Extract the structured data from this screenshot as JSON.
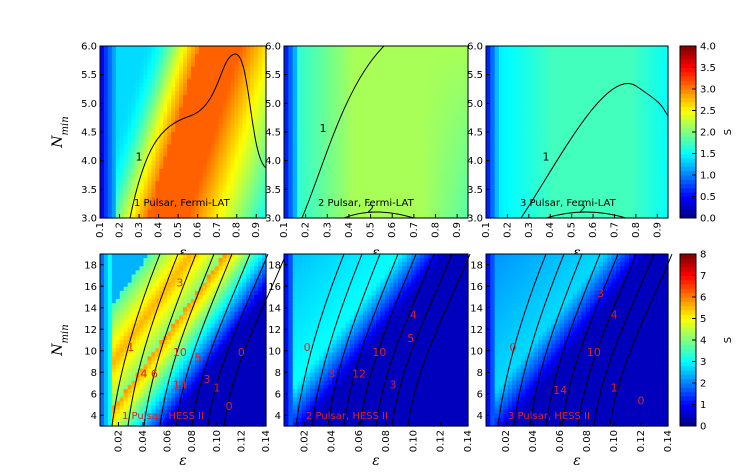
{
  "chart_data": [
    {
      "type": "heatmap",
      "panel_label": "1 Pulsar, Fermi-LAT",
      "xlabel": "ε",
      "ylabel": "N_min",
      "xlim": [
        0.1,
        0.95
      ],
      "ylim": [
        3.0,
        6.0
      ],
      "xticks": [
        "0.1",
        "0.2",
        "0.3",
        "0.4",
        "0.5",
        "0.6",
        "0.7",
        "0.8",
        "0.9"
      ],
      "yticks": [
        "3.0",
        "3.5",
        "4.0",
        "4.5",
        "5.0",
        "5.5",
        "6.0"
      ],
      "colorbar": "top",
      "contour_labels": [
        {
          "text": "1",
          "x": 0.3,
          "y": 4.0,
          "color": "#000000"
        }
      ]
    },
    {
      "type": "heatmap",
      "panel_label": "2 Pulsar, Fermi-LAT",
      "xlabel": "ε",
      "ylabel": "",
      "xlim": [
        0.1,
        0.95
      ],
      "ylim": [
        3.0,
        6.0
      ],
      "xticks": [
        "0.1",
        "0.2",
        "0.3",
        "0.4",
        "0.5",
        "0.6",
        "0.7",
        "0.8",
        "0.9"
      ],
      "yticks": [
        "3.0",
        "3.5",
        "4.0",
        "4.5",
        "5.0",
        "5.5",
        "6.0"
      ],
      "colorbar": "top",
      "contour_labels": [
        {
          "text": "1",
          "x": 0.28,
          "y": 4.5,
          "color": "#000000"
        },
        {
          "text": "2",
          "x": 0.5,
          "y": 3.1,
          "color": "#000000"
        }
      ]
    },
    {
      "type": "heatmap",
      "panel_label": "3 Pulsar, Fermi-LAT",
      "xlabel": "ε",
      "ylabel": "",
      "xlim": [
        0.1,
        0.95
      ],
      "ylim": [
        3.0,
        6.0
      ],
      "xticks": [
        "0.1",
        "0.2",
        "0.3",
        "0.4",
        "0.5",
        "0.6",
        "0.7",
        "0.8",
        "0.9"
      ],
      "yticks": [
        "3.0",
        "3.5",
        "4.0",
        "4.5",
        "5.0",
        "5.5",
        "6.0"
      ],
      "colorbar": "top",
      "contour_labels": [
        {
          "text": "1",
          "x": 0.38,
          "y": 4.0,
          "color": "#000000"
        },
        {
          "text": "2",
          "x": 0.55,
          "y": 3.1,
          "color": "#000000"
        }
      ]
    },
    {
      "type": "heatmap",
      "panel_label": "1 Pulsar, HESS II",
      "xlabel": "ε",
      "ylabel": "N_min",
      "xlim": [
        0.005,
        0.14
      ],
      "ylim": [
        3,
        19
      ],
      "xticks": [
        "0.02",
        "0.04",
        "0.06",
        "0.08",
        "0.10",
        "0.12",
        "0.14"
      ],
      "yticks": [
        "4",
        "6",
        "8",
        "10",
        "12",
        "14",
        "16",
        "18"
      ],
      "colorbar": "bottom",
      "contour_labels": [
        {
          "text": "1",
          "x": 0.03,
          "y": 10,
          "color": "#dd2222"
        },
        {
          "text": "3",
          "x": 0.07,
          "y": 16,
          "color": "#dd2222"
        },
        {
          "text": "4 6",
          "x": 0.045,
          "y": 7.5,
          "color": "#dd2222"
        },
        {
          "text": "10",
          "x": 0.07,
          "y": 9.5,
          "color": "#dd2222"
        },
        {
          "text": "14",
          "x": 0.07,
          "y": 6.5,
          "color": "#dd2222"
        },
        {
          "text": "5",
          "x": 0.085,
          "y": 9,
          "color": "#dd2222"
        },
        {
          "text": "3",
          "x": 0.092,
          "y": 7,
          "color": "#dd2222"
        },
        {
          "text": "1",
          "x": 0.1,
          "y": 6.2,
          "color": "#dd2222"
        },
        {
          "text": "0",
          "x": 0.12,
          "y": 9.5,
          "color": "#dd2222"
        },
        {
          "text": "0",
          "x": 0.11,
          "y": 4.5,
          "color": "#dd2222"
        }
      ]
    },
    {
      "type": "heatmap",
      "panel_label": "2 Pulsar, HESS II",
      "xlabel": "ε",
      "ylabel": "",
      "xlim": [
        0.005,
        0.14
      ],
      "ylim": [
        3,
        19
      ],
      "xticks": [
        "0.02",
        "0.04",
        "0.06",
        "0.08",
        "0.10",
        "0.12",
        "0.14"
      ],
      "yticks": [
        "4",
        "6",
        "8",
        "10",
        "12",
        "14",
        "16",
        "18"
      ],
      "colorbar": "bottom",
      "contour_labels": [
        {
          "text": "0",
          "x": 0.022,
          "y": 10,
          "color": "#dd2222"
        },
        {
          "text": "3",
          "x": 0.04,
          "y": 7.5,
          "color": "#dd2222"
        },
        {
          "text": "10",
          "x": 0.075,
          "y": 9.5,
          "color": "#dd2222"
        },
        {
          "text": "12",
          "x": 0.06,
          "y": 7.5,
          "color": "#dd2222"
        },
        {
          "text": "5",
          "x": 0.098,
          "y": 10.8,
          "color": "#dd2222"
        },
        {
          "text": "4",
          "x": 0.1,
          "y": 13,
          "color": "#dd2222"
        },
        {
          "text": "3",
          "x": 0.085,
          "y": 6.5,
          "color": "#dd2222"
        }
      ]
    },
    {
      "type": "heatmap",
      "panel_label": "3 Pulsar, HESS II",
      "xlabel": "ε",
      "ylabel": "",
      "xlim": [
        0.005,
        0.14
      ],
      "ylim": [
        3,
        19
      ],
      "xticks": [
        "0.02",
        "0.04",
        "0.06",
        "0.08",
        "0.10",
        "0.12",
        "0.14"
      ],
      "yticks": [
        "4",
        "6",
        "8",
        "10",
        "12",
        "14",
        "16",
        "18"
      ],
      "colorbar": "bottom",
      "contour_labels": [
        {
          "text": "0",
          "x": 0.025,
          "y": 10,
          "color": "#dd2222"
        },
        {
          "text": "3",
          "x": 0.09,
          "y": 15,
          "color": "#dd2222"
        },
        {
          "text": "4",
          "x": 0.1,
          "y": 13,
          "color": "#dd2222"
        },
        {
          "text": "10",
          "x": 0.085,
          "y": 9.5,
          "color": "#dd2222"
        },
        {
          "text": "14",
          "x": 0.06,
          "y": 6,
          "color": "#dd2222"
        },
        {
          "text": "1",
          "x": 0.1,
          "y": 6.2,
          "color": "#dd2222"
        },
        {
          "text": "0",
          "x": 0.12,
          "y": 5,
          "color": "#dd2222"
        }
      ]
    }
  ],
  "colorbars": [
    {
      "label": "S",
      "ticks": [
        "0.0",
        "0.5",
        "1.0",
        "1.5",
        "2.0",
        "2.5",
        "3.0",
        "3.5",
        "4.0"
      ],
      "range": [
        0,
        4
      ]
    },
    {
      "label": "S",
      "ticks": [
        "0",
        "1",
        "2",
        "3",
        "4",
        "5",
        "6",
        "7",
        "8"
      ],
      "range": [
        0,
        8
      ]
    }
  ]
}
